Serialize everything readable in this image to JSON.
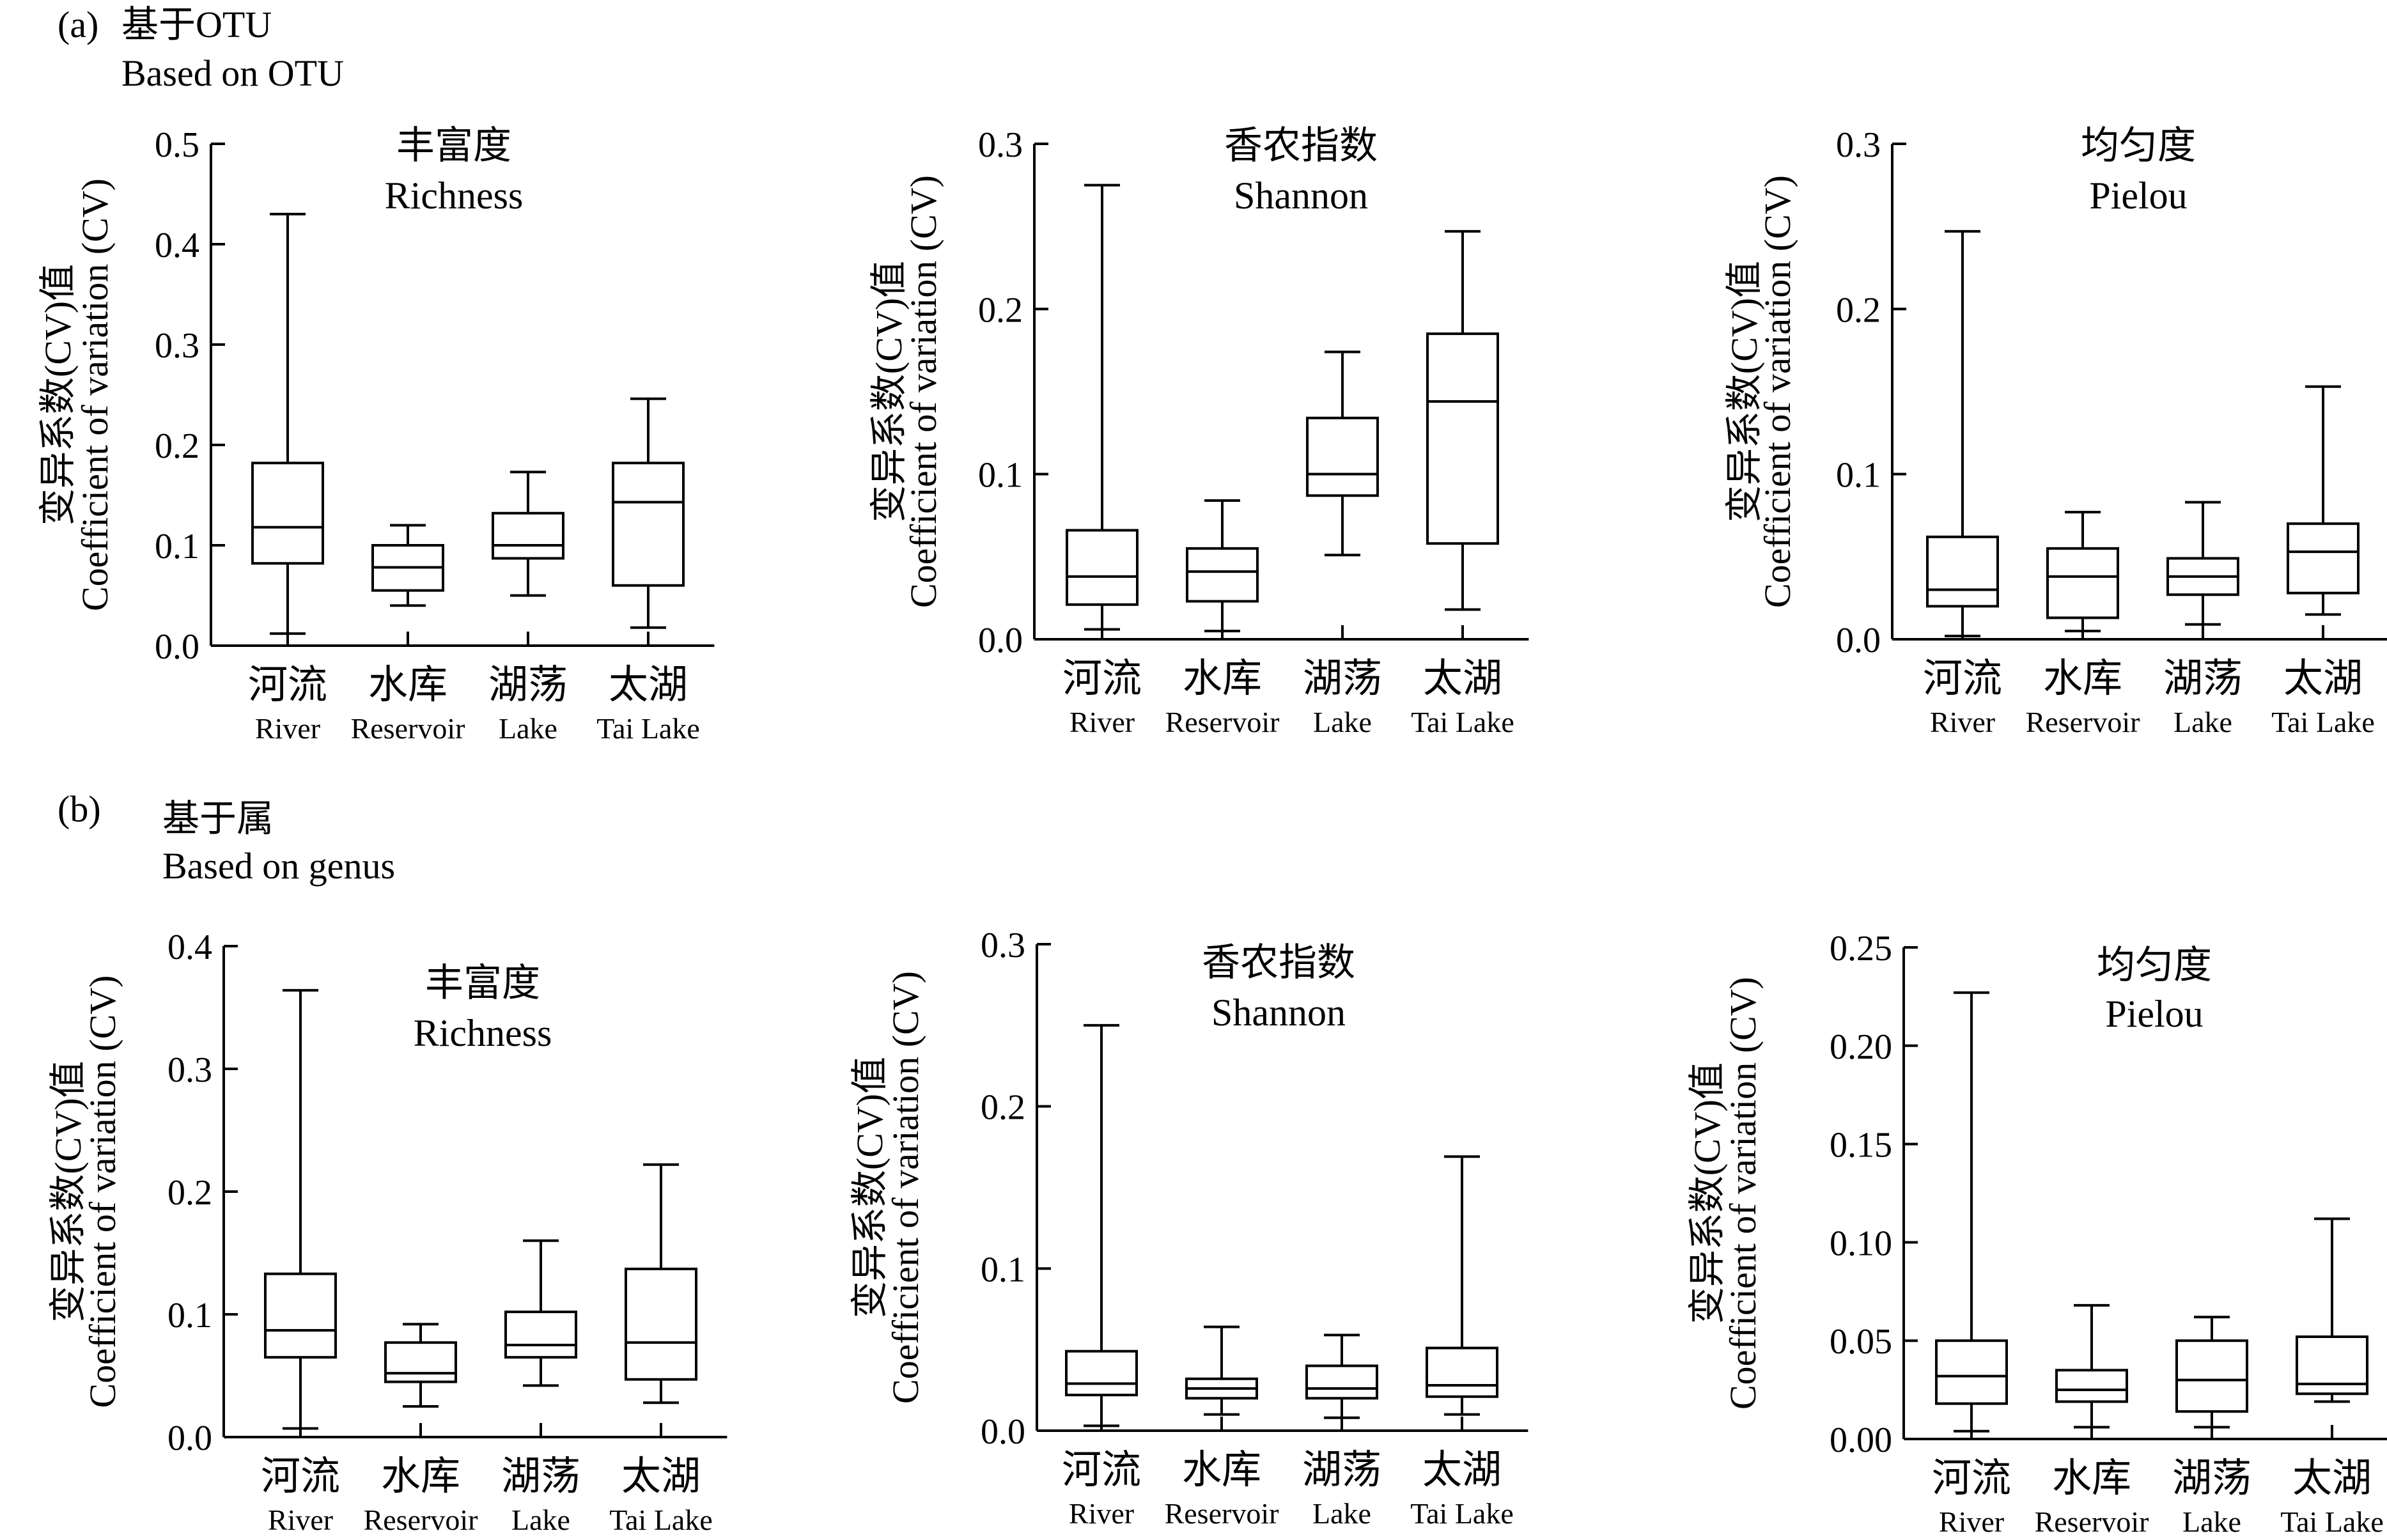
{
  "panels": [
    {
      "label": "(a)",
      "title_zh": "基于OTU",
      "title_en": "Based on OTU",
      "charts": [
        {
          "type": "box",
          "title_zh": "丰富度",
          "title_en": "Richness",
          "ylabel_zh": "变异系数(CV)值",
          "ylabel_en": "Coefficient of variation (CV)",
          "ylim": [
            0,
            0.5
          ],
          "yticks": [
            "0.0",
            "0.1",
            "0.2",
            "0.3",
            "0.4",
            "0.5"
          ],
          "categories_zh": [
            "河流",
            "水库",
            "湖荡",
            "太湖"
          ],
          "categories_en": [
            "River",
            "Reservoir",
            "Lake",
            "Tai Lake"
          ],
          "boxes": [
            {
              "min": 0.012,
              "q1": 0.082,
              "median": 0.118,
              "q3": 0.182,
              "max": 0.43
            },
            {
              "min": 0.04,
              "q1": 0.055,
              "median": 0.078,
              "q3": 0.1,
              "max": 0.12
            },
            {
              "min": 0.05,
              "q1": 0.087,
              "median": 0.1,
              "q3": 0.132,
              "max": 0.173
            },
            {
              "min": 0.018,
              "q1": 0.06,
              "median": 0.143,
              "q3": 0.182,
              "max": 0.246
            }
          ]
        },
        {
          "type": "box",
          "title_zh": "香农指数",
          "title_en": "Shannon",
          "ylabel_zh": "变异系数(CV)值",
          "ylabel_en": "Coefficient of variation (CV)",
          "ylim": [
            0,
            0.3
          ],
          "yticks": [
            "0.0",
            "0.1",
            "0.2",
            "0.3"
          ],
          "categories_zh": [
            "河流",
            "水库",
            "湖荡",
            "太湖"
          ],
          "categories_en": [
            "River",
            "Reservoir",
            "Lake",
            "Tai Lake"
          ],
          "boxes": [
            {
              "min": 0.006,
              "q1": 0.021,
              "median": 0.038,
              "q3": 0.066,
              "max": 0.275
            },
            {
              "min": 0.005,
              "q1": 0.023,
              "median": 0.041,
              "q3": 0.055,
              "max": 0.084
            },
            {
              "min": 0.051,
              "q1": 0.087,
              "median": 0.1,
              "q3": 0.134,
              "max": 0.174
            },
            {
              "min": 0.018,
              "q1": 0.058,
              "median": 0.144,
              "q3": 0.185,
              "max": 0.247
            }
          ]
        },
        {
          "type": "box",
          "title_zh": "均匀度",
          "title_en": "Pielou",
          "ylabel_zh": "变异系数(CV)值",
          "ylabel_en": "Coefficient of variation (CV)",
          "ylim": [
            0,
            0.3
          ],
          "yticks": [
            "0.0",
            "0.1",
            "0.2",
            "0.3"
          ],
          "categories_zh": [
            "河流",
            "水库",
            "湖荡",
            "太湖"
          ],
          "categories_en": [
            "River",
            "Reservoir",
            "Lake",
            "Tai Lake"
          ],
          "boxes": [
            {
              "min": 0.002,
              "q1": 0.02,
              "median": 0.03,
              "q3": 0.062,
              "max": 0.247
            },
            {
              "min": 0.005,
              "q1": 0.013,
              "median": 0.038,
              "q3": 0.055,
              "max": 0.077
            },
            {
              "min": 0.009,
              "q1": 0.027,
              "median": 0.038,
              "q3": 0.049,
              "max": 0.083
            },
            {
              "min": 0.015,
              "q1": 0.028,
              "median": 0.053,
              "q3": 0.07,
              "max": 0.153
            }
          ]
        }
      ]
    },
    {
      "label": "(b)",
      "title_zh": "基于属",
      "title_en": "Based on genus",
      "charts": [
        {
          "type": "box",
          "title_zh": "丰富度",
          "title_en": "Richness",
          "ylabel_zh": "变异系数(CV)值",
          "ylabel_en": "Coefficient of variation (CV)",
          "ylim": [
            0,
            0.4
          ],
          "yticks": [
            "0.0",
            "0.1",
            "0.2",
            "0.3",
            "0.4"
          ],
          "categories_zh": [
            "河流",
            "水库",
            "湖荡",
            "太湖"
          ],
          "categories_en": [
            "River",
            "Reservoir",
            "Lake",
            "Tai Lake"
          ],
          "boxes": [
            {
              "min": 0.007,
              "q1": 0.065,
              "median": 0.087,
              "q3": 0.133,
              "max": 0.364
            },
            {
              "min": 0.025,
              "q1": 0.045,
              "median": 0.052,
              "q3": 0.077,
              "max": 0.092
            },
            {
              "min": 0.042,
              "q1": 0.065,
              "median": 0.075,
              "q3": 0.102,
              "max": 0.16
            },
            {
              "min": 0.028,
              "q1": 0.047,
              "median": 0.077,
              "q3": 0.137,
              "max": 0.222
            }
          ]
        },
        {
          "type": "box",
          "title_zh": "香农指数",
          "title_en": "Shannon",
          "ylabel_zh": "变异系数(CV)值",
          "ylabel_en": "Coefficient of variation (CV)",
          "ylim": [
            0,
            0.3
          ],
          "yticks": [
            "0.0",
            "0.1",
            "0.2",
            "0.3"
          ],
          "categories_zh": [
            "河流",
            "水库",
            "湖荡",
            "太湖"
          ],
          "categories_en": [
            "River",
            "Reservoir",
            "Lake",
            "Tai Lake"
          ],
          "boxes": [
            {
              "min": 0.003,
              "q1": 0.022,
              "median": 0.029,
              "q3": 0.049,
              "max": 0.25
            },
            {
              "min": 0.01,
              "q1": 0.02,
              "median": 0.026,
              "q3": 0.032,
              "max": 0.064
            },
            {
              "min": 0.008,
              "q1": 0.02,
              "median": 0.026,
              "q3": 0.04,
              "max": 0.059
            },
            {
              "min": 0.01,
              "q1": 0.021,
              "median": 0.028,
              "q3": 0.051,
              "max": 0.169
            }
          ]
        },
        {
          "type": "box",
          "title_zh": "均匀度",
          "title_en": "Pielou",
          "ylabel_zh": "变异系数(CV)值",
          "ylabel_en": "Coefficient of variation (CV)",
          "ylim": [
            0,
            0.25
          ],
          "yticks": [
            "0.00",
            "0.05",
            "0.10",
            "0.15",
            "0.20",
            "0.25"
          ],
          "categories_zh": [
            "河流",
            "水库",
            "湖荡",
            "太湖"
          ],
          "categories_en": [
            "River",
            "Reservoir",
            "Lake",
            "Tai Lake"
          ],
          "boxes": [
            {
              "min": 0.004,
              "q1": 0.018,
              "median": 0.032,
              "q3": 0.05,
              "max": 0.227
            },
            {
              "min": 0.006,
              "q1": 0.019,
              "median": 0.025,
              "q3": 0.035,
              "max": 0.068
            },
            {
              "min": 0.006,
              "q1": 0.014,
              "median": 0.03,
              "q3": 0.05,
              "max": 0.062
            },
            {
              "min": 0.019,
              "q1": 0.023,
              "median": 0.028,
              "q3": 0.052,
              "max": 0.112
            }
          ]
        }
      ]
    }
  ]
}
